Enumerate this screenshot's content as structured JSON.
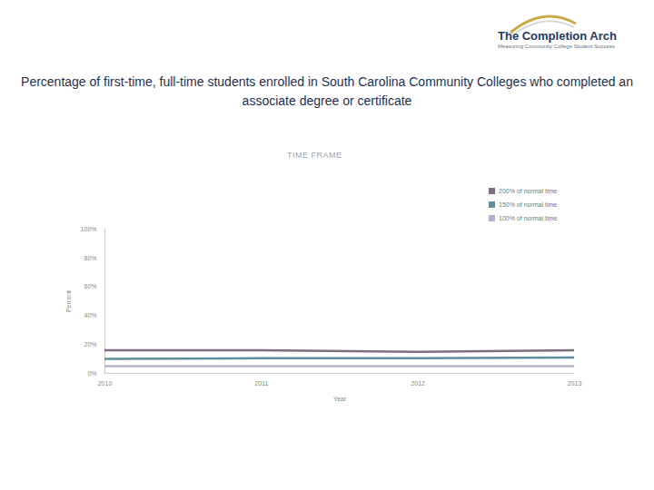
{
  "chart_data": {
    "type": "line",
    "title": "Percentage of first-time, full-time students enrolled in South Carolina Community Colleges who completed an associate degree or certificate",
    "logo_text": [
      "The Completion Arch",
      "Measuring Community College Student Success"
    ],
    "legend_title": "TIME FRAME",
    "x_label": "Year",
    "y_label": "Percent",
    "x": [
      2010,
      2011,
      2012,
      2013
    ],
    "series": [
      {
        "name": "200% of normal time",
        "color": "#7e6e80",
        "values": [
          16,
          16,
          15,
          16
        ]
      },
      {
        "name": "150% of normal time",
        "color": "#5e8f9c",
        "values": [
          10,
          10.5,
          10.5,
          11
        ]
      },
      {
        "name": "100% of normal time",
        "color": "#b6b0c4",
        "values": [
          5,
          5,
          5,
          5
        ]
      }
    ],
    "xlim": [
      2010,
      2013
    ],
    "xticks": [
      2010,
      2011,
      2012,
      2013
    ],
    "ylim": [
      0,
      100
    ],
    "yticks": [
      {
        "value": 0,
        "label": "0%"
      },
      {
        "value": 20,
        "label": "20%"
      },
      {
        "value": 40,
        "label": "40%"
      },
      {
        "value": 60,
        "label": "60%"
      },
      {
        "value": 80,
        "label": "80%"
      },
      {
        "value": 100,
        "label": "100%"
      }
    ],
    "grid": false,
    "legend": "top-right"
  }
}
